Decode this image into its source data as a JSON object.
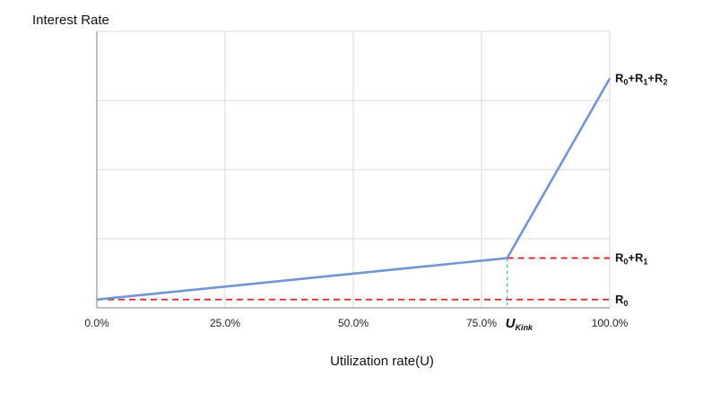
{
  "chart_data": {
    "type": "line",
    "ylabel": "Interest Rate",
    "xlabel": "Utilization rate(U)",
    "x_ticks": [
      "0.0%",
      "25.0%",
      "50.0%",
      "75.0%",
      "100.0%"
    ],
    "xlim": [
      0,
      100
    ],
    "ylim": [
      0,
      100
    ],
    "grid": true,
    "kink_label": {
      "main": "U",
      "sub": "Kink"
    },
    "series": [
      {
        "values_x": [
          0,
          80,
          100
        ],
        "values_y": [
          3,
          18,
          83
        ],
        "color": "#6f96d6"
      }
    ],
    "reference_lines": [
      {
        "y": 3,
        "x_from": 0,
        "x_to": 100,
        "color": "#e02020",
        "style": "dashed",
        "label_parts": [
          {
            "t": "R"
          },
          {
            "t": "0",
            "sub": true
          }
        ]
      },
      {
        "y": 18,
        "x_from": 80,
        "x_to": 100,
        "color": "#e02020",
        "style": "dashed",
        "label_parts": [
          {
            "t": "R"
          },
          {
            "t": "0",
            "sub": true
          },
          {
            "t": "+R"
          },
          {
            "t": "1",
            "sub": true
          }
        ]
      },
      {
        "y": 83,
        "x_from": 100,
        "x_to": 100,
        "color": "none",
        "style": "none",
        "label_parts": [
          {
            "t": "R"
          },
          {
            "t": "0",
            "sub": true
          },
          {
            "t": "+R"
          },
          {
            "t": "1",
            "sub": true
          },
          {
            "t": "+R"
          },
          {
            "t": "2",
            "sub": true
          }
        ]
      }
    ],
    "kink_x": 80,
    "kink_line_color": "#3bb0d8"
  }
}
